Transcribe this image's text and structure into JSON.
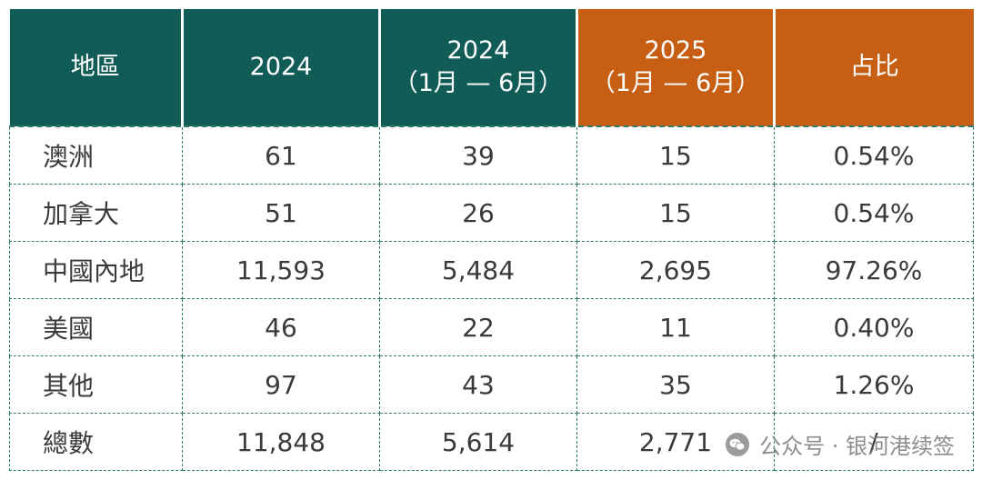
{
  "table": {
    "headers": [
      {
        "lines": [
          "地區"
        ],
        "color": "#115c57"
      },
      {
        "lines": [
          "2024"
        ],
        "color": "#115c57"
      },
      {
        "lines": [
          "2024",
          "（1月 — 6月）"
        ],
        "color": "#115c57"
      },
      {
        "lines": [
          "2025",
          "（1月 — 6月）"
        ],
        "color": "#c65f14"
      },
      {
        "lines": [
          "占比"
        ],
        "color": "#c65f14"
      }
    ],
    "rows": [
      [
        "澳洲",
        "61",
        "39",
        "15",
        "0.54%"
      ],
      [
        "加拿大",
        "51",
        "26",
        "15",
        "0.54%"
      ],
      [
        "中國內地",
        "11,593",
        "5,484",
        "2,695",
        "97.26%"
      ],
      [
        "美國",
        "46",
        "22",
        "11",
        "0.40%"
      ],
      [
        "其他",
        "97",
        "43",
        "35",
        "1.26%"
      ],
      [
        "總數",
        "11,848",
        "5,614",
        "2,771",
        "/"
      ]
    ]
  },
  "watermark": {
    "text": "公众号 · 银河港续签",
    "icon": "wechat-icon"
  }
}
